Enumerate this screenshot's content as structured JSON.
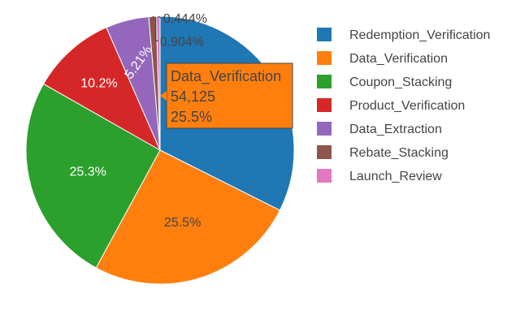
{
  "chart_data": {
    "type": "pie",
    "slices": [
      {
        "label": "Redemption_Verification",
        "percent": 32.4,
        "color": "#1f77b4",
        "label_text": ""
      },
      {
        "label": "Data_Verification",
        "percent": 25.5,
        "color": "#ff7f0e",
        "label_text": "25.5%"
      },
      {
        "label": "Coupon_Stacking",
        "percent": 25.3,
        "color": "#2ca02c",
        "label_text": "25.3%"
      },
      {
        "label": "Product_Verification",
        "percent": 10.2,
        "color": "#d62728",
        "label_text": "10.2%"
      },
      {
        "label": "Data_Extraction",
        "percent": 5.21,
        "color": "#9467bd",
        "label_text": "5.21%"
      },
      {
        "label": "Rebate_Stacking",
        "percent": 0.904,
        "color": "#8c564b",
        "label_text": "0.904%"
      },
      {
        "label": "Launch_Review",
        "percent": 0.444,
        "color": "#e377c2",
        "label_text": "0.444%"
      }
    ],
    "legend": {
      "placement": "right"
    },
    "tooltip": {
      "slice": "Data_Verification",
      "label": "Data_Verification",
      "value": "54,125",
      "percent": "25.5%"
    }
  }
}
